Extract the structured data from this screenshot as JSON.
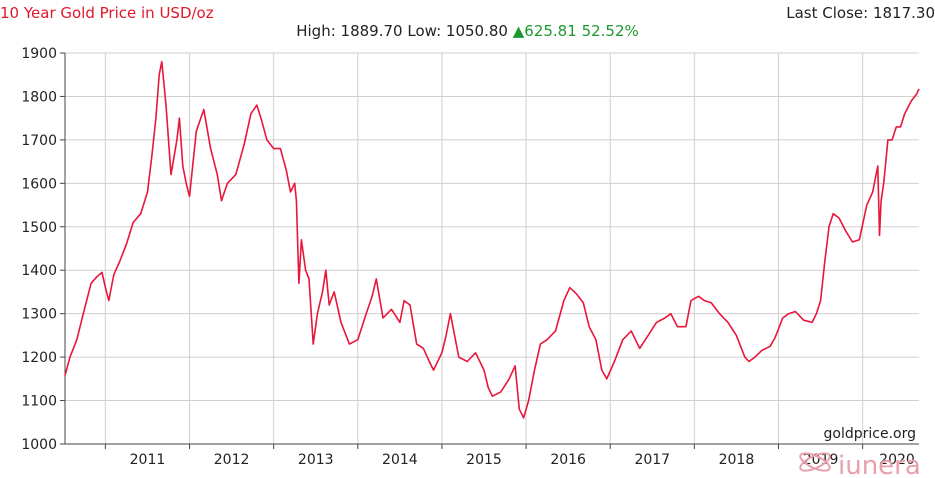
{
  "header": {
    "title": "10 Year Gold Price in USD/oz",
    "last_close_label": "Last Close:",
    "last_close_value": "1817.30",
    "high_label": "High:",
    "high_value": "1889.70",
    "low_label": "Low:",
    "low_value": "1050.80",
    "change_arrow": "▲",
    "change_value": "625.81",
    "change_percent": "52.52%"
  },
  "source_label": "goldprice.org",
  "watermark": {
    "text": "iunera",
    "icon": "iunera-logo-icon"
  },
  "colors": {
    "line": "#e8163a",
    "title": "#e2172b",
    "change": "#1a9a2e",
    "grid": "#d0d0d0"
  },
  "chart_data": {
    "type": "line",
    "title": "10 Year Gold Price in USD/oz",
    "xlabel": "",
    "ylabel": "",
    "xlim": [
      2010.52,
      2020.67
    ],
    "ylim": [
      1000,
      1900
    ],
    "yticks": [
      1000,
      1100,
      1200,
      1300,
      1400,
      1500,
      1600,
      1700,
      1800,
      1900
    ],
    "xticks": [
      2011,
      2012,
      2013,
      2014,
      2015,
      2016,
      2017,
      2018,
      2019,
      2020
    ],
    "xtick_labels": [
      "2011",
      "2012",
      "2013",
      "2014",
      "2015",
      "2016",
      "2017",
      "2018",
      "2019",
      "2020"
    ],
    "grid": true,
    "series": [
      {
        "x": [
          2010.52,
          2010.58,
          2010.66,
          2010.75,
          2010.83,
          2010.9,
          2010.96,
          2011.0,
          2011.04,
          2011.1,
          2011.17,
          2011.25,
          2011.33,
          2011.42,
          2011.5,
          2011.55,
          2011.6,
          2011.64,
          2011.67,
          2011.72,
          2011.78,
          2011.85,
          2011.88,
          2011.92,
          2011.96,
          2012.0,
          2012.08,
          2012.17,
          2012.25,
          2012.33,
          2012.38,
          2012.45,
          2012.55,
          2012.65,
          2012.73,
          2012.8,
          2012.85,
          2012.92,
          2013.0,
          2013.08,
          2013.15,
          2013.2,
          2013.25,
          2013.27,
          2013.3,
          2013.33,
          2013.38,
          2013.42,
          2013.47,
          2013.52,
          2013.58,
          2013.62,
          2013.66,
          2013.72,
          2013.8,
          2013.9,
          2014.0,
          2014.1,
          2014.17,
          2014.22,
          2014.3,
          2014.4,
          2014.5,
          2014.55,
          2014.62,
          2014.7,
          2014.78,
          2014.85,
          2014.9,
          2015.0,
          2015.05,
          2015.1,
          2015.2,
          2015.3,
          2015.4,
          2015.5,
          2015.55,
          2015.6,
          2015.7,
          2015.8,
          2015.87,
          2015.92,
          2015.97,
          2016.03,
          2016.1,
          2016.17,
          2016.25,
          2016.35,
          2016.45,
          2016.52,
          2016.6,
          2016.68,
          2016.75,
          2016.83,
          2016.9,
          2016.96,
          2017.05,
          2017.15,
          2017.25,
          2017.35,
          2017.45,
          2017.55,
          2017.65,
          2017.72,
          2017.8,
          2017.9,
          2017.96,
          2018.05,
          2018.12,
          2018.2,
          2018.3,
          2018.4,
          2018.5,
          2018.6,
          2018.65,
          2018.72,
          2018.8,
          2018.9,
          2018.96,
          2019.05,
          2019.12,
          2019.2,
          2019.3,
          2019.4,
          2019.45,
          2019.5,
          2019.55,
          2019.6,
          2019.65,
          2019.72,
          2019.8,
          2019.88,
          2019.96,
          2020.05,
          2020.12,
          2020.18,
          2020.2,
          2020.22,
          2020.25,
          2020.3,
          2020.35,
          2020.4,
          2020.45,
          2020.5,
          2020.58,
          2020.64,
          2020.67
        ],
        "y": [
          1158,
          1200,
          1240,
          1310,
          1370,
          1385,
          1395,
          1360,
          1330,
          1390,
          1420,
          1460,
          1510,
          1530,
          1580,
          1660,
          1750,
          1850,
          1880,
          1780,
          1620,
          1700,
          1750,
          1640,
          1600,
          1570,
          1720,
          1770,
          1680,
          1620,
          1560,
          1600,
          1620,
          1690,
          1760,
          1780,
          1750,
          1700,
          1680,
          1680,
          1630,
          1580,
          1600,
          1560,
          1370,
          1470,
          1400,
          1380,
          1230,
          1300,
          1350,
          1400,
          1320,
          1350,
          1280,
          1230,
          1240,
          1300,
          1340,
          1380,
          1290,
          1310,
          1280,
          1330,
          1320,
          1230,
          1220,
          1190,
          1170,
          1210,
          1250,
          1300,
          1200,
          1190,
          1210,
          1170,
          1130,
          1110,
          1120,
          1150,
          1180,
          1080,
          1060,
          1100,
          1170,
          1230,
          1240,
          1260,
          1330,
          1360,
          1345,
          1325,
          1270,
          1240,
          1170,
          1150,
          1190,
          1240,
          1260,
          1220,
          1250,
          1280,
          1290,
          1300,
          1270,
          1270,
          1330,
          1340,
          1330,
          1325,
          1300,
          1280,
          1250,
          1200,
          1190,
          1200,
          1215,
          1225,
          1245,
          1290,
          1300,
          1305,
          1285,
          1280,
          1300,
          1330,
          1420,
          1500,
          1530,
          1520,
          1490,
          1465,
          1470,
          1550,
          1580,
          1640,
          1480,
          1560,
          1600,
          1700,
          1700,
          1730,
          1730,
          1760,
          1790,
          1805,
          1817.3
        ]
      }
    ]
  }
}
